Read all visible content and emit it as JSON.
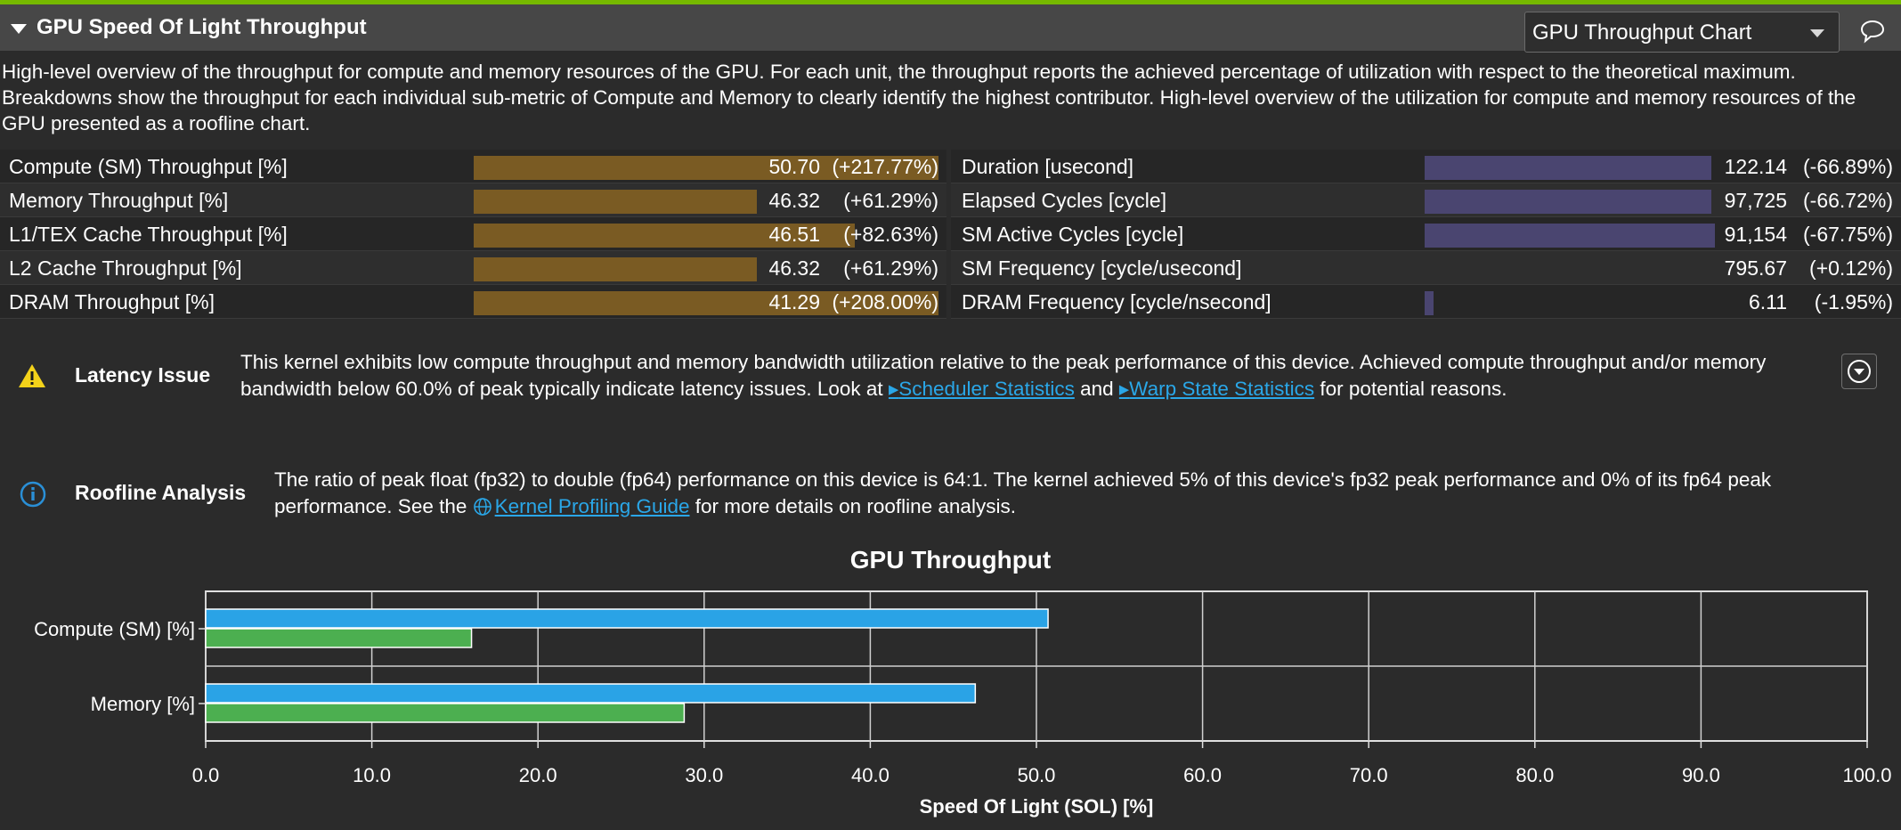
{
  "section": {
    "title": "GPU Speed Of Light Throughput",
    "view_select": "GPU Throughput Chart",
    "description": "High-level overview of the throughput for compute and memory resources of the GPU. For each unit, the throughput reports the achieved percentage of utilization with respect to the theoretical maximum. Breakdowns show the throughput for each individual sub-metric of Compute and Memory to clearly identify the highest contributor. High-level overview of the utilization for compute and memory resources of the GPU presented as a roofline chart."
  },
  "metrics_left": [
    {
      "label": "Compute (SM) Throughput [%]",
      "value": "50.70",
      "delta": "(+217.77%)",
      "fill": 1.0
    },
    {
      "label": "Memory Throughput [%]",
      "value": "46.32",
      "delta": "(+61.29%)",
      "fill": 0.61
    },
    {
      "label": "L1/TEX Cache Throughput [%]",
      "value": "46.51",
      "delta": "(+82.63%)",
      "fill": 0.82
    },
    {
      "label": "L2 Cache Throughput [%]",
      "value": "46.32",
      "delta": "(+61.29%)",
      "fill": 0.61
    },
    {
      "label": "DRAM Throughput [%]",
      "value": "41.29",
      "delta": "(+208.00%)",
      "fill": 1.0
    }
  ],
  "metrics_right": [
    {
      "label": "Duration [usecond]",
      "value": "122.14",
      "delta": "(-66.89%)",
      "fill": 0.67
    },
    {
      "label": "Elapsed Cycles [cycle]",
      "value": "97,725",
      "delta": "(-66.72%)",
      "fill": 0.67
    },
    {
      "label": "SM Active Cycles [cycle]",
      "value": "91,154",
      "delta": "(-67.75%)",
      "fill": 0.68
    },
    {
      "label": "SM Frequency [cycle/usecond]",
      "value": "795.67",
      "delta": "(+0.12%)",
      "fill": 0.0
    },
    {
      "label": "DRAM Frequency [cycle/nsecond]",
      "value": "6.11",
      "delta": "(-1.95%)",
      "fill": 0.02
    }
  ],
  "latency": {
    "title": "Latency Issue",
    "text_before": "This kernel exhibits low compute throughput and memory bandwidth utilization relative to the peak performance of this device. Achieved compute throughput and/or memory bandwidth below 60.0% of peak typically indicate latency issues. Look at ",
    "link1": "Scheduler Statistics",
    "text_mid": " and ",
    "link2": "Warp State Statistics",
    "text_after": " for potential reasons."
  },
  "roofline": {
    "title": "Roofline Analysis",
    "text_before": "The ratio of peak float (fp32) to double (fp64) performance on this device is 64:1. The kernel achieved 5% of this device's fp32 peak performance and 0% of its fp64 peak performance. See the ",
    "link": "Kernel Profiling Guide",
    "text_after": " for more details on roofline analysis."
  },
  "chart_data": {
    "type": "bar",
    "orientation": "horizontal",
    "title": "GPU Throughput",
    "xlabel": "Speed Of Light (SOL) [%]",
    "ylabel": "",
    "categories": [
      "Compute (SM) [%]",
      "Memory [%]"
    ],
    "series": [
      {
        "color": "#2aa3e6",
        "values": [
          50.7,
          46.32
        ]
      },
      {
        "color": "#4caf50",
        "values": [
          16.0,
          28.8
        ]
      }
    ],
    "xlim": [
      0,
      100
    ],
    "xticks": [
      "0.0",
      "10.0",
      "20.0",
      "30.0",
      "40.0",
      "50.0",
      "60.0",
      "70.0",
      "80.0",
      "90.0",
      "100.0"
    ],
    "grid": true
  },
  "colors": {
    "accent": "#76b900",
    "bar_orange": "#7a5b23",
    "bar_purple": "#4a4570",
    "link": "#2aa7e8",
    "warning": "#f3d21a",
    "info": "#2a8fd6"
  }
}
